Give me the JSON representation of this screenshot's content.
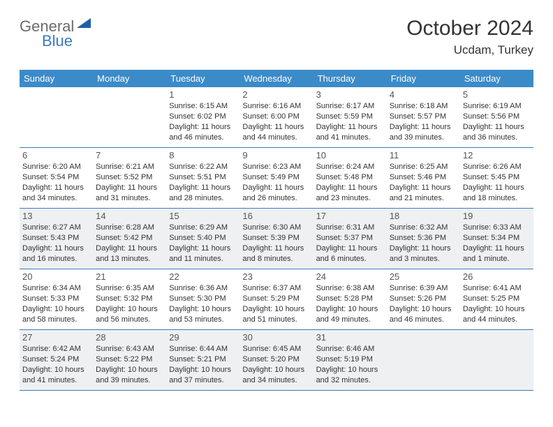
{
  "logo": {
    "part1": "General",
    "part2": "Blue"
  },
  "title": "October 2024",
  "location": "Ucdam, Turkey",
  "colors": {
    "header_bar": "#3b8bc9",
    "week_divider": "#3b7bbf",
    "shaded_bg": "#eef0f2",
    "text": "#333333",
    "daynum": "#555555",
    "logo_gray": "#6b6b6b",
    "logo_blue": "#3b7bbf"
  },
  "weekdays": [
    "Sunday",
    "Monday",
    "Tuesday",
    "Wednesday",
    "Thursday",
    "Friday",
    "Saturday"
  ],
  "weeks": [
    {
      "shaded": false,
      "days": [
        null,
        null,
        {
          "n": "1",
          "sr": "Sunrise: 6:15 AM",
          "ss": "Sunset: 6:02 PM",
          "dl": "Daylight: 11 hours and 46 minutes."
        },
        {
          "n": "2",
          "sr": "Sunrise: 6:16 AM",
          "ss": "Sunset: 6:00 PM",
          "dl": "Daylight: 11 hours and 44 minutes."
        },
        {
          "n": "3",
          "sr": "Sunrise: 6:17 AM",
          "ss": "Sunset: 5:59 PM",
          "dl": "Daylight: 11 hours and 41 minutes."
        },
        {
          "n": "4",
          "sr": "Sunrise: 6:18 AM",
          "ss": "Sunset: 5:57 PM",
          "dl": "Daylight: 11 hours and 39 minutes."
        },
        {
          "n": "5",
          "sr": "Sunrise: 6:19 AM",
          "ss": "Sunset: 5:56 PM",
          "dl": "Daylight: 11 hours and 36 minutes."
        }
      ]
    },
    {
      "shaded": false,
      "days": [
        {
          "n": "6",
          "sr": "Sunrise: 6:20 AM",
          "ss": "Sunset: 5:54 PM",
          "dl": "Daylight: 11 hours and 34 minutes."
        },
        {
          "n": "7",
          "sr": "Sunrise: 6:21 AM",
          "ss": "Sunset: 5:52 PM",
          "dl": "Daylight: 11 hours and 31 minutes."
        },
        {
          "n": "8",
          "sr": "Sunrise: 6:22 AM",
          "ss": "Sunset: 5:51 PM",
          "dl": "Daylight: 11 hours and 28 minutes."
        },
        {
          "n": "9",
          "sr": "Sunrise: 6:23 AM",
          "ss": "Sunset: 5:49 PM",
          "dl": "Daylight: 11 hours and 26 minutes."
        },
        {
          "n": "10",
          "sr": "Sunrise: 6:24 AM",
          "ss": "Sunset: 5:48 PM",
          "dl": "Daylight: 11 hours and 23 minutes."
        },
        {
          "n": "11",
          "sr": "Sunrise: 6:25 AM",
          "ss": "Sunset: 5:46 PM",
          "dl": "Daylight: 11 hours and 21 minutes."
        },
        {
          "n": "12",
          "sr": "Sunrise: 6:26 AM",
          "ss": "Sunset: 5:45 PM",
          "dl": "Daylight: 11 hours and 18 minutes."
        }
      ]
    },
    {
      "shaded": true,
      "days": [
        {
          "n": "13",
          "sr": "Sunrise: 6:27 AM",
          "ss": "Sunset: 5:43 PM",
          "dl": "Daylight: 11 hours and 16 minutes."
        },
        {
          "n": "14",
          "sr": "Sunrise: 6:28 AM",
          "ss": "Sunset: 5:42 PM",
          "dl": "Daylight: 11 hours and 13 minutes."
        },
        {
          "n": "15",
          "sr": "Sunrise: 6:29 AM",
          "ss": "Sunset: 5:40 PM",
          "dl": "Daylight: 11 hours and 11 minutes."
        },
        {
          "n": "16",
          "sr": "Sunrise: 6:30 AM",
          "ss": "Sunset: 5:39 PM",
          "dl": "Daylight: 11 hours and 8 minutes."
        },
        {
          "n": "17",
          "sr": "Sunrise: 6:31 AM",
          "ss": "Sunset: 5:37 PM",
          "dl": "Daylight: 11 hours and 6 minutes."
        },
        {
          "n": "18",
          "sr": "Sunrise: 6:32 AM",
          "ss": "Sunset: 5:36 PM",
          "dl": "Daylight: 11 hours and 3 minutes."
        },
        {
          "n": "19",
          "sr": "Sunrise: 6:33 AM",
          "ss": "Sunset: 5:34 PM",
          "dl": "Daylight: 11 hours and 1 minute."
        }
      ]
    },
    {
      "shaded": false,
      "days": [
        {
          "n": "20",
          "sr": "Sunrise: 6:34 AM",
          "ss": "Sunset: 5:33 PM",
          "dl": "Daylight: 10 hours and 58 minutes."
        },
        {
          "n": "21",
          "sr": "Sunrise: 6:35 AM",
          "ss": "Sunset: 5:32 PM",
          "dl": "Daylight: 10 hours and 56 minutes."
        },
        {
          "n": "22",
          "sr": "Sunrise: 6:36 AM",
          "ss": "Sunset: 5:30 PM",
          "dl": "Daylight: 10 hours and 53 minutes."
        },
        {
          "n": "23",
          "sr": "Sunrise: 6:37 AM",
          "ss": "Sunset: 5:29 PM",
          "dl": "Daylight: 10 hours and 51 minutes."
        },
        {
          "n": "24",
          "sr": "Sunrise: 6:38 AM",
          "ss": "Sunset: 5:28 PM",
          "dl": "Daylight: 10 hours and 49 minutes."
        },
        {
          "n": "25",
          "sr": "Sunrise: 6:39 AM",
          "ss": "Sunset: 5:26 PM",
          "dl": "Daylight: 10 hours and 46 minutes."
        },
        {
          "n": "26",
          "sr": "Sunrise: 6:41 AM",
          "ss": "Sunset: 5:25 PM",
          "dl": "Daylight: 10 hours and 44 minutes."
        }
      ]
    },
    {
      "shaded": true,
      "days": [
        {
          "n": "27",
          "sr": "Sunrise: 6:42 AM",
          "ss": "Sunset: 5:24 PM",
          "dl": "Daylight: 10 hours and 41 minutes."
        },
        {
          "n": "28",
          "sr": "Sunrise: 6:43 AM",
          "ss": "Sunset: 5:22 PM",
          "dl": "Daylight: 10 hours and 39 minutes."
        },
        {
          "n": "29",
          "sr": "Sunrise: 6:44 AM",
          "ss": "Sunset: 5:21 PM",
          "dl": "Daylight: 10 hours and 37 minutes."
        },
        {
          "n": "30",
          "sr": "Sunrise: 6:45 AM",
          "ss": "Sunset: 5:20 PM",
          "dl": "Daylight: 10 hours and 34 minutes."
        },
        {
          "n": "31",
          "sr": "Sunrise: 6:46 AM",
          "ss": "Sunset: 5:19 PM",
          "dl": "Daylight: 10 hours and 32 minutes."
        },
        null,
        null
      ]
    }
  ]
}
